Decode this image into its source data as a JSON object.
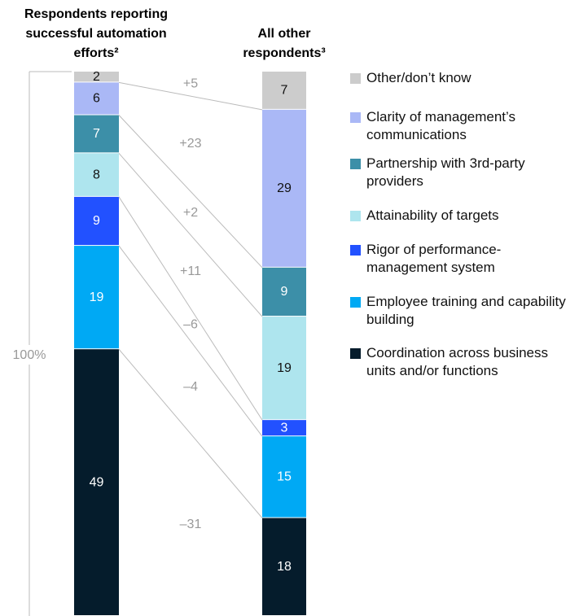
{
  "chart_data": {
    "type": "stacked_bar",
    "categories": [
      "Respondents reporting successful automation efforts²",
      "All other respondents³"
    ],
    "total_label": "100%",
    "ylim": [
      0,
      100
    ],
    "series": [
      {
        "name": "Other/don’t know",
        "color": "#cccccc",
        "values": [
          2,
          7
        ],
        "change": "+5"
      },
      {
        "name": "Clarity of management’s communications",
        "color": "#aab8f6",
        "values": [
          6,
          29
        ],
        "change": "+23"
      },
      {
        "name": "Partnership with 3rd-party providers",
        "color": "#3c8fa8",
        "values": [
          7,
          9
        ],
        "change": "+2"
      },
      {
        "name": "Attainability of targets",
        "color": "#aee5ee",
        "values": [
          8,
          19
        ],
        "change": "+11"
      },
      {
        "name": "Rigor of performance-management system",
        "color": "#2251ff",
        "values": [
          9,
          3
        ],
        "change": "–6"
      },
      {
        "name": "Employee training and capability building",
        "color": "#00a9f4",
        "values": [
          19,
          15
        ],
        "change": "–4"
      },
      {
        "name": "Coordination across business units and/or functions",
        "color": "#051c2c",
        "values": [
          49,
          18
        ],
        "change": "–31"
      }
    ]
  }
}
